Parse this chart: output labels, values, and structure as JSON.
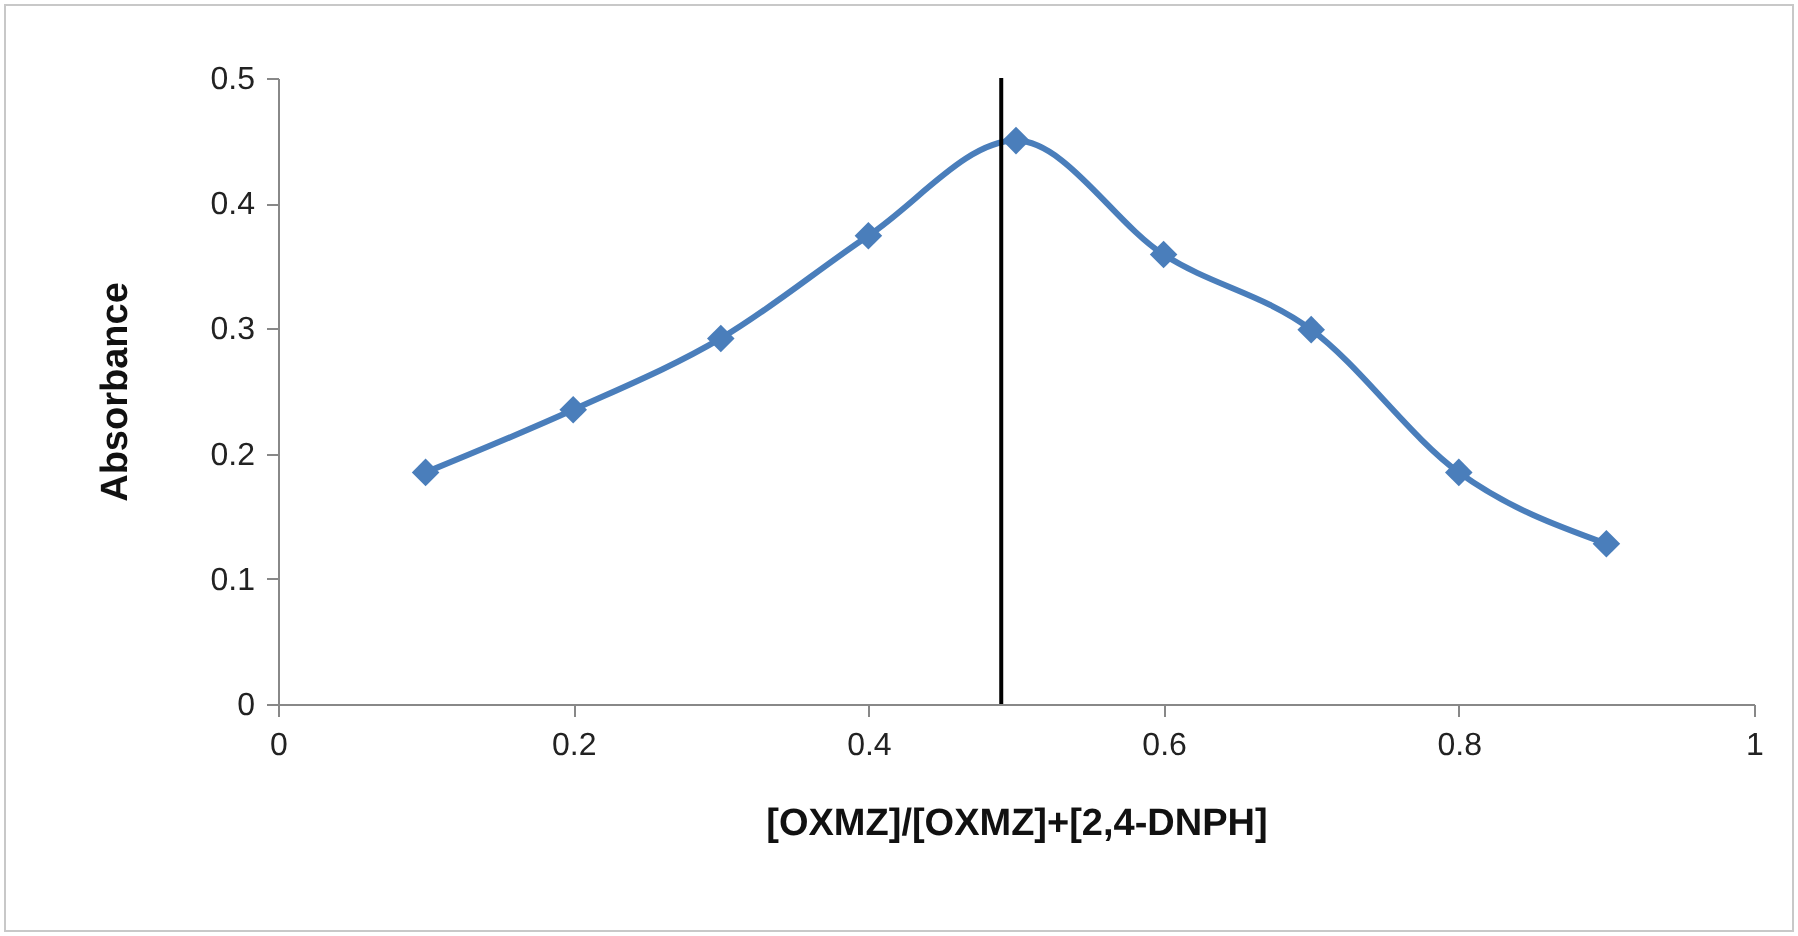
{
  "chart_data": {
    "type": "line",
    "xlabel": "[OXMZ]/[OXMZ]+[2,4-DNPH]",
    "ylabel": "Absorbance",
    "x": [
      0.1,
      0.2,
      0.3,
      0.4,
      0.5,
      0.6,
      0.7,
      0.8,
      0.9
    ],
    "series": [
      {
        "color": "#4a7ebb",
        "values": [
          0.185,
          0.235,
          0.292,
          0.374,
          0.45,
          0.359,
          0.299,
          0.185,
          0.128
        ]
      }
    ],
    "xlim": [
      0,
      1
    ],
    "xticks": [
      0,
      0.2,
      0.4,
      0.6,
      0.8,
      1
    ],
    "ylim": [
      0,
      0.5
    ],
    "yticks": [
      0,
      0.1,
      0.2,
      0.3,
      0.4,
      0.5
    ],
    "ref_lines": [
      {
        "axis": "x",
        "value": 0.49,
        "color": "#000000"
      }
    ],
    "grid": false,
    "legend": false,
    "marker": "diamond",
    "line_style": "solid"
  }
}
